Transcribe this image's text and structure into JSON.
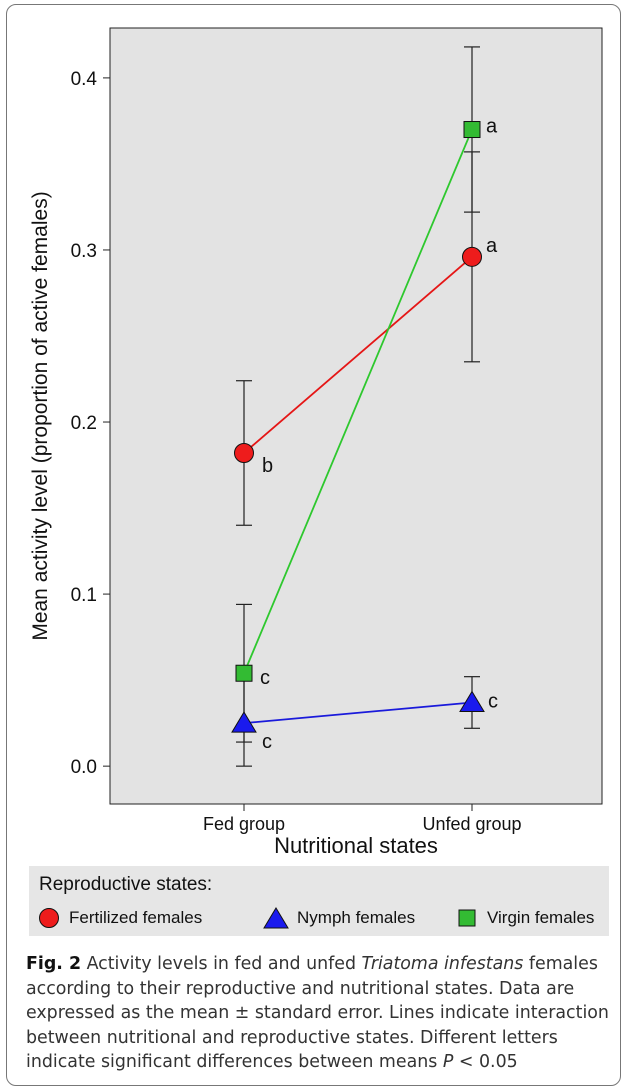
{
  "chart_data": {
    "type": "line",
    "categories": [
      "Fed group",
      "Unfed group"
    ],
    "series": [
      {
        "name": "Fertilized females",
        "color": "#ee1c1c",
        "line_color": "#e51616",
        "marker": "circle",
        "values": [
          0.182,
          0.296
        ],
        "errors": [
          0.042,
          0.061
        ],
        "letters": [
          "b",
          "a"
        ]
      },
      {
        "name": "Nymph females",
        "color": "#1a1aee",
        "line_color": "#1a1adb",
        "marker": "triangle",
        "values": [
          0.025,
          0.037
        ],
        "errors": [
          0.025,
          0.015
        ],
        "letters": [
          "c",
          "c"
        ]
      },
      {
        "name": "Virgin females",
        "color": "#33bb33",
        "line_color": "#2ec82e",
        "marker": "square",
        "values": [
          0.054,
          0.37
        ],
        "errors": [
          0.04,
          0.048
        ],
        "letters": [
          "c",
          "a"
        ]
      }
    ],
    "ylim": [
      -0.022,
      0.429
    ],
    "yticks": [
      0.0,
      0.1,
      0.2,
      0.3,
      0.4
    ],
    "ytick_labels": [
      "0.0",
      "0.1",
      "0.2",
      "0.3",
      "0.4"
    ],
    "xlabel": "Nutritional states",
    "ylabel": "Mean activity level (proportion of active females)",
    "plot_background": "#e3e3e3",
    "grid": false,
    "legend_position": "bottom"
  },
  "legend": {
    "title": "Reproductive states:",
    "items": [
      {
        "label": "Fertilized females",
        "marker": "circle",
        "color": "#ee1c1c"
      },
      {
        "label": "Nymph females",
        "marker": "triangle",
        "color": "#1a1aee"
      },
      {
        "label": "Virgin females",
        "marker": "square",
        "color": "#33bb33"
      }
    ]
  },
  "caption": {
    "fig_label": "Fig. 2",
    "text_before": " Activity levels in fed and unfed ",
    "species": "Triatoma infestans",
    "text_after": " females according to their reproductive and nutritional states. Data are expressed as the mean ± standard error. Lines indicate interaction between nutritional and reproductive states. Different letters indicate significant differences between means ",
    "p_symbol": "P",
    "p_rest": " < 0.05"
  }
}
